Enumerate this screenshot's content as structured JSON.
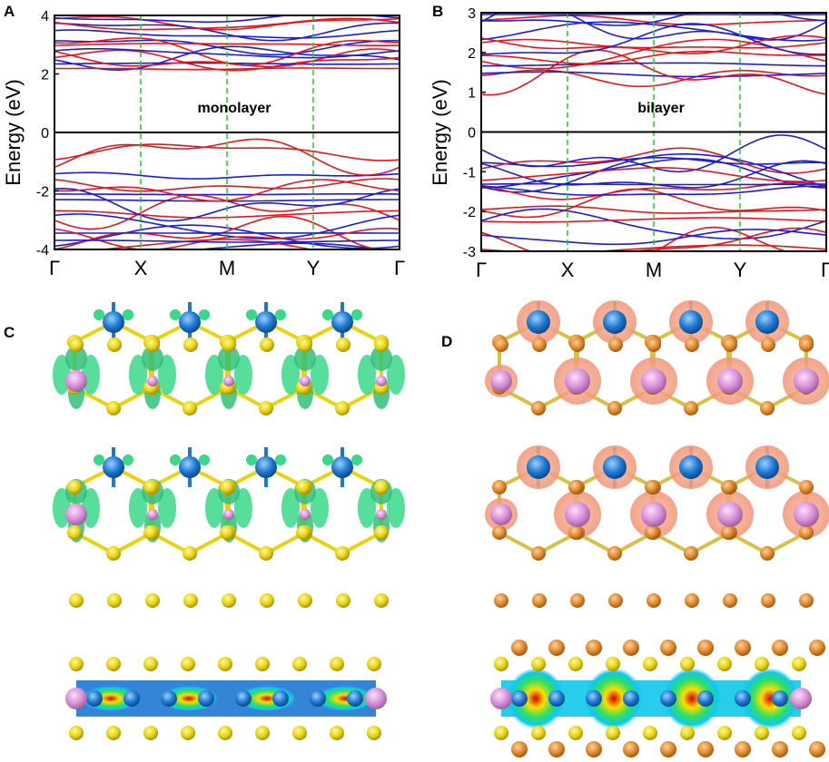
{
  "panels": {
    "a": {
      "label": "A"
    },
    "b": {
      "label": "B"
    },
    "c": {
      "label": "C"
    },
    "d": {
      "label": "D"
    }
  },
  "colors": {
    "band_red": "#e8141c",
    "band_blue": "#1c1cd8",
    "kpath_divider": "#22cc22",
    "fermi_line": "#000000",
    "atom_yellow": "#e8d40c",
    "atom_blue": "#1e78d0",
    "atom_pink": "#d890d8",
    "atom_orange": "#e08a2c",
    "iso_green": "#38d888",
    "iso_salmon": "#f0a080"
  },
  "chart_data": [
    {
      "type": "line",
      "panel": "A",
      "annotation": "monolayer",
      "xlabel": "",
      "ylabel": "Energy (eV)",
      "x_ticks": [
        "Γ",
        "X",
        "M",
        "Y",
        "Γ"
      ],
      "y_ticks": [
        "4",
        "2",
        "0",
        "-2",
        "-4"
      ],
      "ylim": [
        -4,
        4
      ],
      "fermi_level": 0,
      "series": [
        {
          "color": "red",
          "values": []
        },
        {
          "color": "blue",
          "values": []
        }
      ]
    },
    {
      "type": "line",
      "panel": "B",
      "annotation": "bilayer",
      "xlabel": "",
      "ylabel": "Energy (eV)",
      "x_ticks": [
        "Γ",
        "X",
        "M",
        "Y",
        "Γ"
      ],
      "y_ticks": [
        "3",
        "2",
        "1",
        "0",
        "-1",
        "-2",
        "-3"
      ],
      "ylim": [
        -3,
        3
      ],
      "fermi_level": 0,
      "series": [
        {
          "color": "red",
          "values": []
        },
        {
          "color": "blue",
          "values": []
        }
      ]
    }
  ]
}
